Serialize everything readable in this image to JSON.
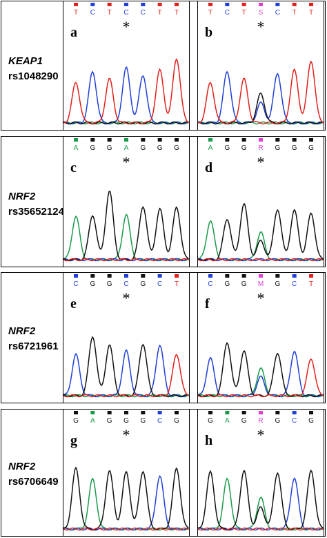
{
  "colors": {
    "A": "#1a9a4a",
    "C": "#1f3fd6",
    "G": "#111111",
    "T": "#e0201a",
    "het": "#e040d0"
  },
  "rows": [
    {
      "gene": "KEAP1",
      "rs": "rs1048290",
      "panels": [
        {
          "letter": "a",
          "bases": [
            "T",
            "C",
            "T",
            "C",
            "C",
            "T",
            "T"
          ],
          "star_index": 3
        },
        {
          "letter": "b",
          "bases": [
            "T",
            "C",
            "T",
            "S",
            "C",
            "T",
            "T"
          ],
          "star_index": 3
        }
      ]
    },
    {
      "gene": "NRF2",
      "rs": "rs35652124",
      "panels": [
        {
          "letter": "c",
          "bases": [
            "A",
            "G",
            "G",
            "A",
            "G",
            "G",
            "G"
          ],
          "star_index": 3
        },
        {
          "letter": "d",
          "bases": [
            "A",
            "G",
            "G",
            "R",
            "G",
            "G",
            "G"
          ],
          "star_index": 3
        }
      ]
    },
    {
      "gene": "NRF2",
      "rs": "rs6721961",
      "panels": [
        {
          "letter": "e",
          "bases": [
            "C",
            "G",
            "G",
            "C",
            "G",
            "C",
            "T"
          ],
          "star_index": 3
        },
        {
          "letter": "f",
          "bases": [
            "C",
            "G",
            "G",
            "M",
            "G",
            "C",
            "T"
          ],
          "star_index": 3
        }
      ]
    },
    {
      "gene": "NRF2",
      "rs": "rs6706649",
      "panels": [
        {
          "letter": "g",
          "bases": [
            "G",
            "A",
            "G",
            "G",
            "G",
            "C",
            "G"
          ],
          "star_index": 3
        },
        {
          "letter": "h",
          "bases": [
            "G",
            "A",
            "G",
            "R",
            "G",
            "C",
            "G"
          ],
          "star_index": 3
        }
      ]
    }
  ],
  "star_symbol": "*"
}
